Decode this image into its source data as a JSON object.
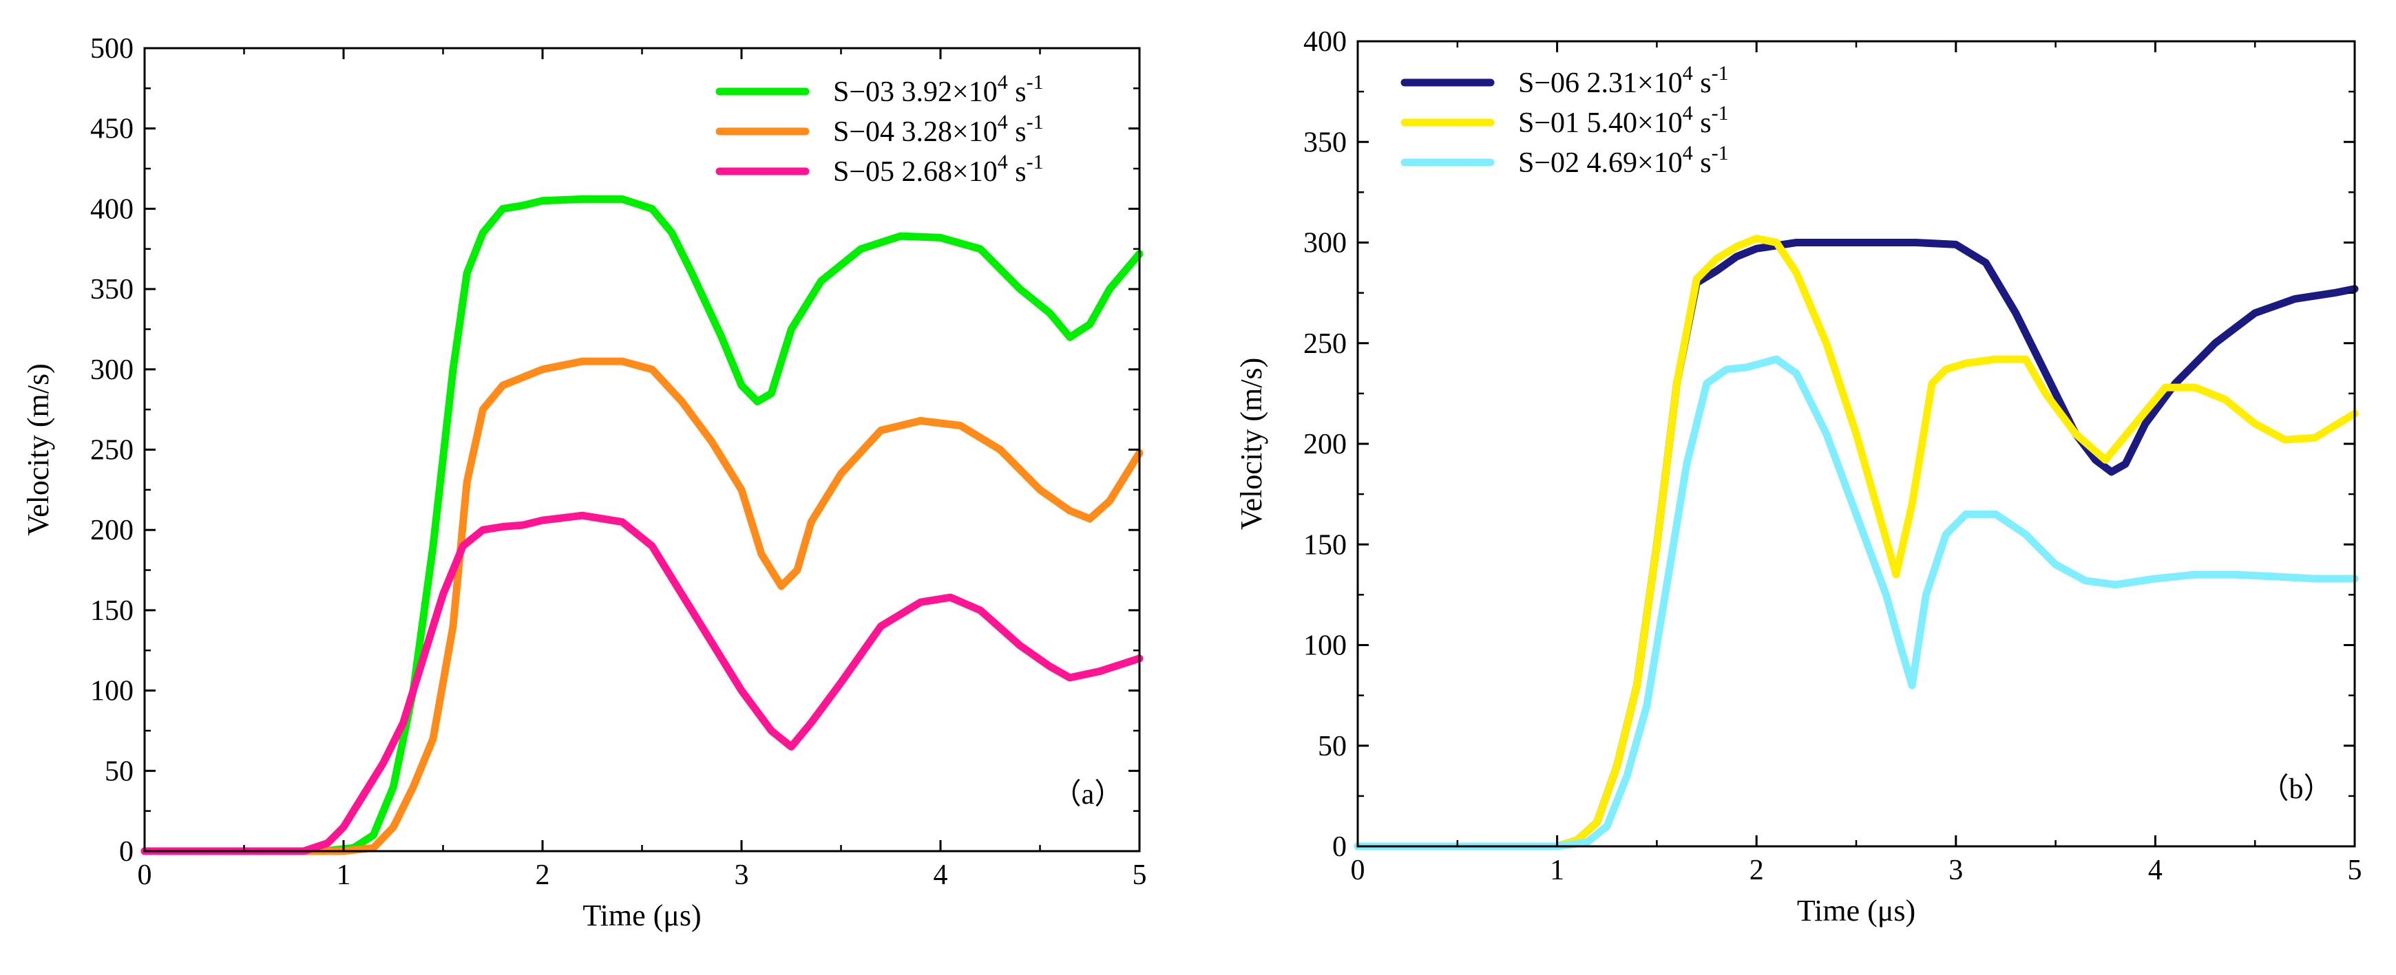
{
  "chart_data": [
    {
      "type": "line",
      "panel_label": "（a）",
      "xlabel": "Time (μs)",
      "ylabel": "Velocity (m/s)",
      "xlim": [
        0,
        5
      ],
      "ylim": [
        0,
        500
      ],
      "xticks": [
        0,
        1,
        2,
        3,
        4,
        5
      ],
      "yticks": [
        0,
        50,
        100,
        150,
        200,
        250,
        300,
        350,
        400,
        450,
        500
      ],
      "grid": false,
      "legend_position": "top-right",
      "series": [
        {
          "name": "S−03 3.92×10⁴ s⁻¹",
          "name_parts": {
            "id": "S−03",
            "mantissa": "3.92×10",
            "exp": "4",
            "unit": "s",
            "unit_exp": "-1"
          },
          "color": "#00ee00",
          "x": [
            0,
            0.9,
            1.05,
            1.15,
            1.25,
            1.35,
            1.45,
            1.55,
            1.62,
            1.7,
            1.8,
            1.9,
            2.0,
            2.2,
            2.4,
            2.55,
            2.65,
            2.75,
            2.9,
            3.0,
            3.08,
            3.15,
            3.25,
            3.4,
            3.6,
            3.8,
            4.0,
            4.2,
            4.4,
            4.55,
            4.65,
            4.75,
            4.85,
            5.0
          ],
          "y": [
            0,
            0,
            2,
            10,
            40,
            100,
            190,
            300,
            360,
            385,
            400,
            402,
            405,
            406,
            406,
            400,
            385,
            360,
            320,
            290,
            280,
            285,
            325,
            355,
            375,
            383,
            382,
            375,
            350,
            335,
            320,
            328,
            350,
            372
          ]
        },
        {
          "name": "S−04 3.28×10⁴ s⁻¹",
          "name_parts": {
            "id": "S−04",
            "mantissa": "3.28×10",
            "exp": "4",
            "unit": "s",
            "unit_exp": "-1"
          },
          "color": "#ff8c1a",
          "x": [
            0,
            1.0,
            1.15,
            1.25,
            1.35,
            1.45,
            1.55,
            1.62,
            1.7,
            1.8,
            1.9,
            2.0,
            2.2,
            2.4,
            2.55,
            2.7,
            2.85,
            3.0,
            3.1,
            3.2,
            3.28,
            3.35,
            3.5,
            3.7,
            3.9,
            4.1,
            4.3,
            4.5,
            4.65,
            4.75,
            4.85,
            5.0
          ],
          "y": [
            0,
            0,
            2,
            15,
            40,
            70,
            140,
            230,
            275,
            290,
            295,
            300,
            305,
            305,
            300,
            280,
            255,
            225,
            185,
            165,
            175,
            205,
            235,
            262,
            268,
            265,
            250,
            225,
            212,
            207,
            218,
            248
          ]
        },
        {
          "name": "S−05 2.68×10⁴ s⁻¹",
          "name_parts": {
            "id": "S−05",
            "mantissa": "2.68×10",
            "exp": "4",
            "unit": "s",
            "unit_exp": "-1"
          },
          "color": "#ff1493",
          "x": [
            0,
            0.8,
            0.92,
            1.0,
            1.1,
            1.2,
            1.3,
            1.4,
            1.5,
            1.6,
            1.7,
            1.8,
            1.9,
            2.0,
            2.2,
            2.4,
            2.55,
            2.7,
            2.85,
            3.0,
            3.15,
            3.25,
            3.35,
            3.5,
            3.7,
            3.9,
            4.05,
            4.2,
            4.4,
            4.55,
            4.65,
            4.8,
            5.0
          ],
          "y": [
            0,
            0,
            5,
            15,
            35,
            55,
            80,
            120,
            160,
            190,
            200,
            202,
            203,
            206,
            209,
            205,
            190,
            160,
            130,
            100,
            75,
            65,
            80,
            105,
            140,
            155,
            158,
            150,
            128,
            115,
            108,
            112,
            120
          ]
        }
      ]
    },
    {
      "type": "line",
      "panel_label": "（b）",
      "xlabel": "Time (μs)",
      "ylabel": "Velocity (m/s)",
      "xlim": [
        0,
        5
      ],
      "ylim": [
        0,
        400
      ],
      "xticks": [
        0,
        1,
        2,
        3,
        4,
        5
      ],
      "yticks": [
        0,
        50,
        100,
        150,
        200,
        250,
        300,
        350,
        400
      ],
      "grid": false,
      "legend_position": "top-left",
      "series": [
        {
          "name": "S−06 2.31×10⁴ s⁻¹",
          "name_parts": {
            "id": "S−06",
            "mantissa": "2.31×10",
            "exp": "4",
            "unit": "s",
            "unit_exp": "-1"
          },
          "color": "#1a1a80",
          "x": [
            0,
            1.0,
            1.1,
            1.2,
            1.3,
            1.4,
            1.5,
            1.6,
            1.7,
            1.8,
            1.9,
            2.0,
            2.2,
            2.5,
            2.8,
            3.0,
            3.15,
            3.3,
            3.45,
            3.6,
            3.7,
            3.78,
            3.85,
            3.95,
            4.1,
            4.3,
            4.5,
            4.7,
            4.9,
            5.0
          ],
          "y": [
            0,
            0,
            3,
            12,
            40,
            80,
            150,
            230,
            280,
            286,
            293,
            297,
            300,
            300,
            300,
            299,
            290,
            265,
            235,
            205,
            192,
            186,
            190,
            210,
            230,
            250,
            265,
            272,
            275,
            277
          ]
        },
        {
          "name": "S−01 5.40×10⁴ s⁻¹",
          "name_parts": {
            "id": "S−01",
            "mantissa": "5.40×10",
            "exp": "4",
            "unit": "s",
            "unit_exp": "-1"
          },
          "color": "#ffee00",
          "x": [
            0,
            1.0,
            1.1,
            1.2,
            1.3,
            1.4,
            1.5,
            1.6,
            1.7,
            1.8,
            1.9,
            2.0,
            2.1,
            2.2,
            2.35,
            2.5,
            2.6,
            2.7,
            2.78,
            2.88,
            2.95,
            3.05,
            3.2,
            3.35,
            3.45,
            3.6,
            3.75,
            3.9,
            4.05,
            4.2,
            4.35,
            4.5,
            4.65,
            4.8,
            5.0
          ],
          "y": [
            0,
            0,
            3,
            12,
            40,
            80,
            150,
            230,
            282,
            292,
            298,
            302,
            300,
            285,
            250,
            205,
            170,
            135,
            170,
            230,
            237,
            240,
            242,
            242,
            225,
            205,
            192,
            210,
            228,
            228,
            222,
            210,
            202,
            203,
            215
          ]
        },
        {
          "name": "S−02 4.69×10⁴ s⁻¹",
          "name_parts": {
            "id": "S−02",
            "mantissa": "4.69×10",
            "exp": "4",
            "unit": "s",
            "unit_exp": "-1"
          },
          "color": "#80eeff",
          "x": [
            0,
            1.0,
            1.15,
            1.25,
            1.35,
            1.45,
            1.55,
            1.65,
            1.75,
            1.85,
            1.95,
            2.1,
            2.2,
            2.35,
            2.5,
            2.65,
            2.72,
            2.78,
            2.85,
            2.95,
            3.05,
            3.2,
            3.35,
            3.5,
            3.65,
            3.8,
            4.0,
            4.2,
            4.4,
            4.6,
            4.8,
            5.0
          ],
          "y": [
            0,
            0,
            2,
            10,
            35,
            70,
            130,
            190,
            230,
            237,
            238,
            242,
            235,
            205,
            165,
            125,
            100,
            80,
            125,
            155,
            165,
            165,
            155,
            140,
            132,
            130,
            133,
            135,
            135,
            134,
            133,
            133
          ]
        }
      ]
    }
  ]
}
